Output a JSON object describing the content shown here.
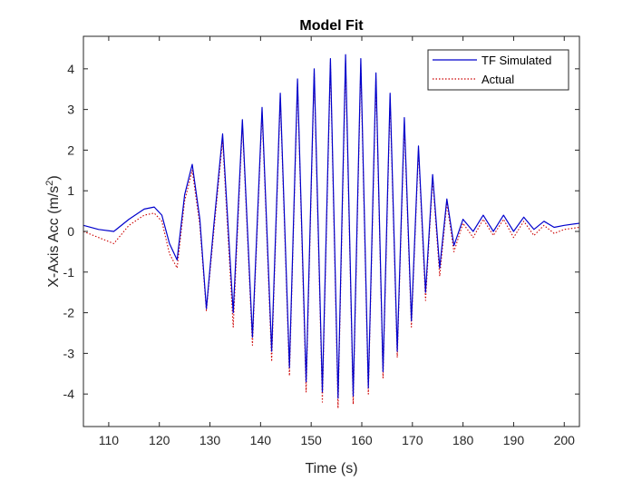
{
  "chart_data": {
    "type": "line",
    "title": "Model Fit",
    "xlabel": "Time (s)",
    "ylabel": "X-Axis Acc (m/s",
    "ylabel_unit_superscript": "2",
    "ylabel_suffix": ")",
    "xlim": [
      105,
      203
    ],
    "ylim": [
      -4.8,
      4.8
    ],
    "xticks": [
      110,
      120,
      130,
      140,
      150,
      160,
      170,
      180,
      190,
      200
    ],
    "xtick_labels": [
      "110",
      "120",
      "130",
      "140",
      "150",
      "160",
      "170",
      "180",
      "190",
      "200"
    ],
    "yticks": [
      4,
      3,
      2,
      1,
      0,
      -1,
      -2,
      -3,
      -4
    ],
    "ytick_labels": [
      "4",
      "3",
      "2",
      "1",
      "0",
      "-1",
      "-2",
      "-3",
      "-4"
    ],
    "legend_position": "top-right",
    "series": [
      {
        "name": "TF Simulated",
        "color": "#0000cc",
        "style": "solid",
        "x": [
          105,
          108,
          111,
          114,
          117,
          119,
          120.5,
          122,
          123.5,
          125,
          126.5,
          128,
          129.3,
          130.8,
          132.5,
          134.6,
          136.4,
          138.4,
          140.3,
          142.2,
          143.9,
          145.7,
          147.3,
          149.0,
          150.6,
          152.2,
          153.8,
          155.3,
          156.8,
          158.3,
          159.8,
          161.3,
          162.8,
          164.2,
          165.6,
          167,
          168.4,
          169.8,
          171.2,
          172.6,
          174,
          175.4,
          176.8,
          178.2,
          180,
          182,
          184,
          186,
          188,
          190,
          192,
          194,
          196,
          198,
          200,
          203
        ],
        "y": [
          0.15,
          0.05,
          0.0,
          0.3,
          0.55,
          0.6,
          0.4,
          -0.3,
          -0.7,
          0.9,
          1.65,
          0.3,
          -1.9,
          0.2,
          2.4,
          -2.0,
          2.75,
          -2.6,
          3.05,
          -2.95,
          3.4,
          -3.35,
          3.75,
          -3.7,
          4.0,
          -3.95,
          4.25,
          -4.1,
          4.35,
          -4.05,
          4.25,
          -3.85,
          3.9,
          -3.45,
          3.4,
          -2.95,
          2.8,
          -2.2,
          2.1,
          -1.5,
          1.4,
          -0.9,
          0.8,
          -0.35,
          0.3,
          0.0,
          0.4,
          0.0,
          0.4,
          0.0,
          0.35,
          0.05,
          0.25,
          0.1,
          0.15,
          0.2
        ]
      },
      {
        "name": "Actual",
        "color": "#cc0000",
        "style": "dotted",
        "x": [
          105,
          108,
          111,
          114,
          117,
          119,
          120.5,
          122,
          123.5,
          125,
          126.5,
          128,
          129.3,
          130.8,
          132.5,
          134.6,
          136.4,
          138.4,
          140.3,
          142.2,
          143.9,
          145.7,
          147.3,
          149.0,
          150.6,
          152.2,
          153.8,
          155.3,
          156.8,
          158.3,
          159.8,
          161.3,
          162.8,
          164.2,
          165.6,
          167,
          168.4,
          169.8,
          171.2,
          172.6,
          174,
          175.4,
          176.8,
          178.2,
          180,
          182,
          184,
          186,
          188,
          190,
          192,
          194,
          196,
          198,
          200,
          203
        ],
        "y": [
          0.0,
          -0.15,
          -0.3,
          0.15,
          0.4,
          0.45,
          0.25,
          -0.55,
          -0.9,
          0.75,
          1.5,
          0.15,
          -1.95,
          0.05,
          2.25,
          -2.35,
          2.65,
          -2.8,
          2.95,
          -3.2,
          3.3,
          -3.55,
          3.65,
          -3.95,
          3.9,
          -4.2,
          4.15,
          -4.35,
          4.2,
          -4.25,
          4.1,
          -4.0,
          3.75,
          -3.6,
          3.25,
          -3.1,
          2.65,
          -2.35,
          2.0,
          -1.7,
          1.3,
          -1.1,
          0.7,
          -0.5,
          0.2,
          -0.15,
          0.3,
          -0.1,
          0.3,
          -0.15,
          0.25,
          -0.1,
          0.15,
          -0.05,
          0.05,
          0.1
        ]
      }
    ]
  }
}
